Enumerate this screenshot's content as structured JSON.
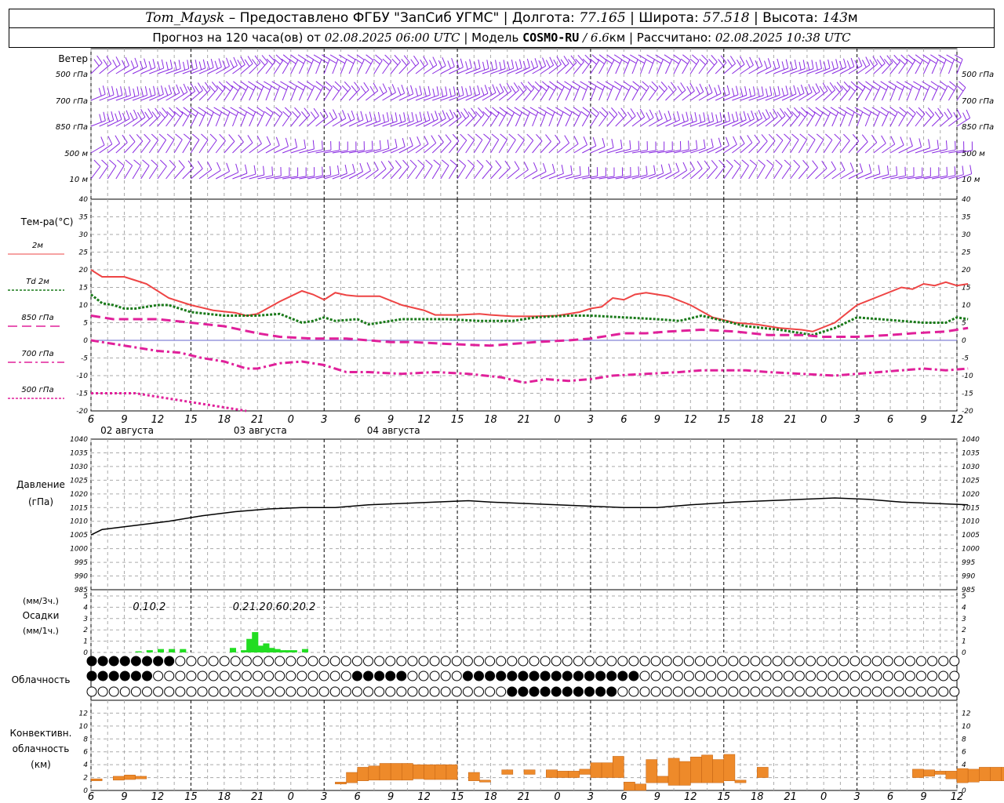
{
  "header": {
    "station": "Tom_Maysk",
    "provider": "– Предоставлено ФГБУ \"ЗапСиб УГМС\"",
    "lon_label": "Долгота:",
    "lon_value": "77.165",
    "lat_label": "Широта:",
    "lat_value": "57.518",
    "alt_label": "Высота:",
    "alt_value": "143",
    "alt_unit": "м",
    "forecast_prefix": "Прогноз на 120 часа(ов) от",
    "forecast_time": "02.08.2025 06:00 UTC",
    "model_label": "Модель",
    "model_name": "COSMO-RU",
    "model_res": "/ 6.6",
    "model_res_unit": "км",
    "calc_label": "Рассчитано:",
    "calc_time": "02.08.2025 10:38 UTC"
  },
  "colors": {
    "wind": "#8a2be2",
    "t2m": "#ee4444",
    "td2m": "#1a7a1a",
    "t850": "#e0209a",
    "t700": "#e0209a",
    "t500": "#e0209a",
    "pressure": "#000000",
    "precip": "#22dd22",
    "convective": "#ee8a2a",
    "grid": "#999999"
  },
  "wind_panel": {
    "title": "Ветер",
    "levels": [
      "500 гПа",
      "700 гПа",
      "850 гПа",
      "500 м",
      "10 м"
    ]
  },
  "time_axis": {
    "hour_labels": [
      "6",
      "9",
      "12",
      "15",
      "18",
      "21",
      "0",
      "3",
      "6",
      "9",
      "12",
      "15",
      "18",
      "21",
      "0",
      "3",
      "6",
      "9",
      "12",
      "15",
      "18",
      "21",
      "0",
      "3",
      "6",
      "9",
      "12"
    ],
    "dates": [
      "02 августа",
      "03 августа",
      "04 августа"
    ]
  },
  "temp_panel": {
    "title": "Тем-ра(°C)",
    "legend": [
      {
        "label": "2м",
        "style": "solid"
      },
      {
        "label": "Td  2м",
        "style": "dotted"
      },
      {
        "label": "850 гПа",
        "style": "dashed"
      },
      {
        "label": "700 гПа",
        "style": "dashdot"
      },
      {
        "label": "500 гПа",
        "style": "dotted"
      }
    ],
    "ticks": [
      "40",
      "35",
      "30",
      "25",
      "20",
      "15",
      "10",
      "5",
      "0",
      "-5",
      "-10",
      "-15",
      "-20"
    ]
  },
  "pressure_panel": {
    "title": "Давление",
    "unit": "(гПа)",
    "ticks": [
      "1040",
      "1035",
      "1030",
      "1025",
      "1020",
      "1015",
      "1010",
      "1005",
      "1000",
      "995",
      "990",
      "985"
    ]
  },
  "precip_panel": {
    "unit_top": "(мм/3ч.)",
    "title": "Осадки",
    "unit_bottom": "(мм/1ч.)",
    "ticks": [
      "5",
      "4",
      "3",
      "2",
      "1",
      "0"
    ],
    "labels": [
      {
        "h": 9,
        "text": "0.1"
      },
      {
        "h": 12,
        "text": "0.2"
      },
      {
        "h": 27,
        "text": "0.2"
      },
      {
        "h": 30,
        "text": "1.2"
      },
      {
        "h": 33,
        "text": "0.6"
      },
      {
        "h": 36,
        "text": "0.2"
      },
      {
        "h": 39,
        "text": "0.2"
      }
    ]
  },
  "cloud_panel": {
    "title": "Облачность"
  },
  "conv_panel": {
    "title1": "Конвективн.",
    "title2": "облачность",
    "unit": "(км)",
    "ticks": [
      "12",
      "10",
      "8",
      "6",
      "4",
      "2",
      "0"
    ]
  },
  "chart_data": {
    "type": "line",
    "x_hours_from_start": "hour offset from 02.08.2025 06:00 UTC",
    "t2m": [
      [
        0,
        20
      ],
      [
        2,
        18
      ],
      [
        6,
        18
      ],
      [
        8,
        17
      ],
      [
        10,
        16
      ],
      [
        14,
        12
      ],
      [
        18,
        10
      ],
      [
        22,
        8.5
      ],
      [
        26,
        7.8
      ],
      [
        28,
        7
      ],
      [
        30,
        7.5
      ],
      [
        34,
        11
      ],
      [
        38,
        14
      ],
      [
        40,
        13
      ],
      [
        42,
        11.5
      ],
      [
        44,
        13.5
      ],
      [
        46,
        12.8
      ],
      [
        48,
        12.5
      ],
      [
        52,
        12.5
      ],
      [
        56,
        10
      ],
      [
        60,
        8.5
      ],
      [
        62,
        7.2
      ],
      [
        66,
        7.2
      ],
      [
        70,
        7.5
      ],
      [
        72,
        7.2
      ],
      [
        76,
        6.8
      ],
      [
        80,
        6.8
      ],
      [
        84,
        7
      ],
      [
        88,
        8
      ],
      [
        90,
        9
      ],
      [
        92,
        9.5
      ],
      [
        94,
        12
      ],
      [
        96,
        11.5
      ],
      [
        98,
        13
      ],
      [
        100,
        13.5
      ],
      [
        104,
        12.5
      ],
      [
        108,
        10
      ],
      [
        112,
        6.5
      ],
      [
        116,
        5
      ],
      [
        120,
        4.5
      ],
      [
        124,
        3.5
      ],
      [
        128,
        3
      ],
      [
        130,
        2.5
      ],
      [
        134,
        5
      ],
      [
        138,
        10
      ],
      [
        142,
        12.5
      ],
      [
        146,
        15
      ],
      [
        148,
        14.5
      ],
      [
        150,
        16
      ],
      [
        152,
        15.5
      ],
      [
        154,
        16.5
      ],
      [
        156,
        15.5
      ],
      [
        158,
        16
      ]
    ],
    "td2m": [
      [
        0,
        13
      ],
      [
        2,
        10.5
      ],
      [
        4,
        10
      ],
      [
        6,
        9
      ],
      [
        8,
        9
      ],
      [
        10,
        9.5
      ],
      [
        12,
        10
      ],
      [
        14,
        10
      ],
      [
        18,
        8
      ],
      [
        24,
        7
      ],
      [
        28,
        7
      ],
      [
        30,
        7
      ],
      [
        34,
        7.5
      ],
      [
        38,
        5
      ],
      [
        40,
        5.5
      ],
      [
        42,
        6.5
      ],
      [
        44,
        5.5
      ],
      [
        48,
        6
      ],
      [
        50,
        4.5
      ],
      [
        52,
        5
      ],
      [
        56,
        6
      ],
      [
        64,
        6
      ],
      [
        70,
        5.5
      ],
      [
        76,
        5.5
      ],
      [
        80,
        6.5
      ],
      [
        86,
        7
      ],
      [
        90,
        7
      ],
      [
        96,
        6.5
      ],
      [
        102,
        6
      ],
      [
        106,
        5.5
      ],
      [
        110,
        7
      ],
      [
        114,
        5.5
      ],
      [
        118,
        4
      ],
      [
        124,
        3
      ],
      [
        128,
        2
      ],
      [
        130,
        1.5
      ],
      [
        134,
        3.5
      ],
      [
        138,
        6.5
      ],
      [
        142,
        6
      ],
      [
        146,
        5.5
      ],
      [
        150,
        5
      ],
      [
        154,
        5
      ],
      [
        156,
        6.5
      ],
      [
        158,
        6
      ]
    ],
    "t850": [
      [
        0,
        7
      ],
      [
        4,
        6
      ],
      [
        8,
        6
      ],
      [
        12,
        6
      ],
      [
        18,
        5
      ],
      [
        24,
        4
      ],
      [
        30,
        2
      ],
      [
        34,
        1
      ],
      [
        40,
        0.5
      ],
      [
        46,
        0.5
      ],
      [
        50,
        0
      ],
      [
        54,
        -0.5
      ],
      [
        58,
        -0.5
      ],
      [
        64,
        -1
      ],
      [
        72,
        -1.5
      ],
      [
        80,
        -0.5
      ],
      [
        86,
        0
      ],
      [
        90,
        0.5
      ],
      [
        96,
        2
      ],
      [
        100,
        2
      ],
      [
        104,
        2.5
      ],
      [
        110,
        3
      ],
      [
        116,
        2.5
      ],
      [
        122,
        1.5
      ],
      [
        128,
        1.5
      ],
      [
        132,
        1
      ],
      [
        138,
        1
      ],
      [
        144,
        1.5
      ],
      [
        148,
        2
      ],
      [
        154,
        2.5
      ],
      [
        158,
        3.5
      ]
    ],
    "t700": [
      [
        0,
        0
      ],
      [
        4,
        -1
      ],
      [
        8,
        -2
      ],
      [
        12,
        -3
      ],
      [
        16,
        -3.5
      ],
      [
        20,
        -5
      ],
      [
        24,
        -6
      ],
      [
        28,
        -8
      ],
      [
        30,
        -8
      ],
      [
        34,
        -6.5
      ],
      [
        38,
        -6
      ],
      [
        42,
        -7
      ],
      [
        46,
        -9
      ],
      [
        50,
        -9
      ],
      [
        56,
        -9.5
      ],
      [
        62,
        -9
      ],
      [
        68,
        -9.5
      ],
      [
        74,
        -10.5
      ],
      [
        78,
        -12
      ],
      [
        82,
        -11
      ],
      [
        86,
        -11.5
      ],
      [
        90,
        -11
      ],
      [
        94,
        -10
      ],
      [
        100,
        -9.5
      ],
      [
        106,
        -9
      ],
      [
        110,
        -8.5
      ],
      [
        118,
        -8.5
      ],
      [
        122,
        -9
      ],
      [
        128,
        -9.5
      ],
      [
        134,
        -10
      ],
      [
        138,
        -9.5
      ],
      [
        142,
        -9
      ],
      [
        146,
        -8.5
      ],
      [
        150,
        -8
      ],
      [
        154,
        -8.5
      ],
      [
        158,
        -8
      ]
    ],
    "t500": [
      [
        0,
        -15
      ],
      [
        4,
        -15
      ],
      [
        8,
        -15
      ],
      [
        12,
        -16
      ],
      [
        16,
        -17
      ],
      [
        20,
        -18
      ],
      [
        24,
        -19
      ],
      [
        28,
        -20
      ]
    ],
    "pressure": [
      [
        0,
        1005
      ],
      [
        2,
        1007
      ],
      [
        6,
        1008
      ],
      [
        10,
        1009
      ],
      [
        14,
        1010
      ],
      [
        20,
        1012
      ],
      [
        26,
        1013.5
      ],
      [
        32,
        1014.5
      ],
      [
        38,
        1015
      ],
      [
        44,
        1015
      ],
      [
        50,
        1016
      ],
      [
        56,
        1016.5
      ],
      [
        62,
        1017
      ],
      [
        68,
        1017.5
      ],
      [
        72,
        1017
      ],
      [
        78,
        1016.5
      ],
      [
        84,
        1016
      ],
      [
        90,
        1015.5
      ],
      [
        96,
        1015
      ],
      [
        102,
        1015
      ],
      [
        108,
        1016
      ],
      [
        116,
        1017
      ],
      [
        122,
        1017.5
      ],
      [
        128,
        1018
      ],
      [
        134,
        1018.5
      ],
      [
        140,
        1018
      ],
      [
        146,
        1017
      ],
      [
        152,
        1016.5
      ],
      [
        158,
        1016
      ]
    ],
    "precip_hourly": [
      [
        0,
        0
      ],
      [
        8,
        0.1
      ],
      [
        10,
        0.2
      ],
      [
        12,
        0.3
      ],
      [
        14,
        0.3
      ],
      [
        16,
        0.3
      ],
      [
        25,
        0.4
      ],
      [
        27,
        0.2
      ],
      [
        28,
        1.2
      ],
      [
        29,
        1.8
      ],
      [
        30,
        0.6
      ],
      [
        31,
        0.8
      ],
      [
        32,
        0.4
      ],
      [
        33,
        0.3
      ],
      [
        34,
        0.2
      ],
      [
        35,
        0.2
      ],
      [
        36,
        0.2
      ],
      [
        38,
        0.3
      ],
      [
        40,
        0
      ]
    ],
    "precip_3h": [
      [
        9,
        0.1
      ],
      [
        12,
        0.2
      ],
      [
        27,
        0.2
      ],
      [
        30,
        1.2
      ],
      [
        33,
        0.6
      ],
      [
        36,
        0.2
      ],
      [
        39,
        0.2
      ]
    ],
    "convective": [
      [
        0,
        1.5,
        1.8
      ],
      [
        4,
        1.6,
        2.2
      ],
      [
        6,
        1.7,
        2.4
      ],
      [
        8,
        1.8,
        2.2
      ],
      [
        44,
        1,
        1.3
      ],
      [
        46,
        1.2,
        2.8
      ],
      [
        48,
        1.5,
        3.6
      ],
      [
        50,
        1.6,
        3.8
      ],
      [
        52,
        1.6,
        4.2
      ],
      [
        54,
        1.6,
        4.2
      ],
      [
        56,
        1.6,
        4.2
      ],
      [
        58,
        1.8,
        4.0
      ],
      [
        60,
        1.7,
        4.0
      ],
      [
        62,
        1.7,
        4.0
      ],
      [
        64,
        1.7,
        4.0
      ],
      [
        68,
        1.5,
        2.8
      ],
      [
        70,
        1.3,
        1.6
      ],
      [
        74,
        2.5,
        3.2
      ],
      [
        78,
        2.5,
        3.2
      ],
      [
        82,
        2,
        3.2
      ],
      [
        84,
        2,
        3
      ],
      [
        86,
        2,
        3
      ],
      [
        88,
        2.5,
        3.3
      ],
      [
        90,
        2,
        4.3
      ],
      [
        92,
        2,
        4.3
      ],
      [
        94,
        2,
        5.3
      ],
      [
        96,
        0,
        1.3
      ],
      [
        98,
        0,
        1.0
      ],
      [
        100,
        1.2,
        4.8
      ],
      [
        102,
        1.2,
        2.2
      ],
      [
        104,
        0.8,
        5
      ],
      [
        106,
        0.8,
        4.5
      ],
      [
        108,
        1.2,
        5.2
      ],
      [
        110,
        1.2,
        5.5
      ],
      [
        112,
        1.2,
        4.8
      ],
      [
        114,
        1.5,
        5.6
      ],
      [
        116,
        1.2,
        1.6
      ],
      [
        120,
        2,
        3.6
      ],
      [
        148,
        2,
        3.3
      ],
      [
        150,
        2.2,
        3.2
      ],
      [
        152,
        2.5,
        3
      ],
      [
        154,
        1.8,
        3
      ],
      [
        156,
        1.2,
        3.4
      ],
      [
        158,
        1.3,
        3.3
      ],
      [
        160,
        1.5,
        3.6
      ],
      [
        162,
        1.5,
        3.6
      ],
      [
        164,
        1.5,
        3.6
      ],
      [
        166,
        1.6,
        3.6
      ],
      [
        168,
        1.6,
        3.6
      ]
    ]
  }
}
